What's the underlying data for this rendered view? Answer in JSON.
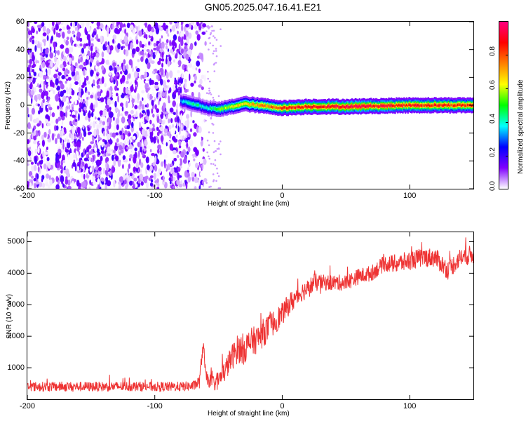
{
  "figure": {
    "title": "GN05.2025.047.16.41.E21"
  },
  "chart_data": [
    {
      "type": "heatmap",
      "title": "",
      "xlabel": "Height of straight line (km)",
      "ylabel": "Frequency (Hz)",
      "xlim": [
        -200,
        150
      ],
      "ylim": [
        -60,
        60
      ],
      "x_ticks": [
        -200,
        -100,
        0,
        100
      ],
      "y_ticks": [
        -60,
        -40,
        -20,
        0,
        20,
        40,
        60
      ],
      "x_tick_labels": [
        "-200",
        "-100",
        "0",
        "100"
      ],
      "y_tick_labels": [
        "-60",
        "-40",
        "-20",
        "0",
        "20",
        "40",
        "60"
      ],
      "noise_region_x": [
        -200,
        -60
      ],
      "signal": {
        "x": [
          -80,
          -70,
          -60,
          -50,
          -40,
          -30,
          -20,
          -10,
          0,
          20,
          50,
          100,
          150
        ],
        "frequency": [
          3,
          1,
          -2,
          -3,
          -1,
          1,
          0,
          -1,
          -2,
          -1,
          -1,
          0,
          0
        ],
        "peak_amplitude": [
          0.35,
          0.45,
          0.4,
          0.55,
          0.65,
          0.7,
          0.75,
          0.8,
          0.85,
          0.9,
          0.95,
          0.9,
          0.85
        ]
      },
      "colorbar": {
        "label": "Normalized spectral amplitude",
        "range": [
          0.0,
          1.0
        ],
        "ticks": [
          0.0,
          0.2,
          0.4,
          0.6,
          0.8
        ],
        "tick_labels": [
          "0.0",
          "0.2",
          "0.4",
          "0.6",
          "0.8"
        ],
        "colors": [
          "#ffffff",
          "#8000ff",
          "#0000ff",
          "#00ffff",
          "#00ff00",
          "#ffff00",
          "#ff8000",
          "#ff0000",
          "#ff0080"
        ]
      }
    },
    {
      "type": "line",
      "title": "",
      "xlabel": "Height of straight line (km)",
      "ylabel": "SNR (10 * v/v)",
      "xlim": [
        -200,
        150
      ],
      "ylim": [
        0,
        5300
      ],
      "x_ticks": [
        -200,
        -100,
        0,
        100
      ],
      "y_ticks": [
        1000,
        2000,
        3000,
        4000,
        5000
      ],
      "x_tick_labels": [
        "-200",
        "-100",
        "0",
        "100"
      ],
      "y_tick_labels": [
        "1000",
        "2000",
        "3000",
        "4000",
        "5000"
      ],
      "series": [
        {
          "color": "#ee3333",
          "x": [
            -200,
            -180,
            -160,
            -140,
            -120,
            -100,
            -80,
            -70,
            -65,
            -62,
            -60,
            -55,
            -50,
            -45,
            -40,
            -35,
            -30,
            -25,
            -20,
            -15,
            -10,
            -5,
            0,
            5,
            10,
            15,
            20,
            25,
            30,
            40,
            50,
            60,
            70,
            80,
            90,
            100,
            110,
            120,
            130,
            140,
            150
          ],
          "y": [
            400,
            400,
            400,
            400,
            410,
            400,
            400,
            420,
            550,
            1800,
            700,
            500,
            600,
            900,
            1300,
            1600,
            1600,
            1800,
            1900,
            2100,
            2300,
            2500,
            2700,
            3000,
            3200,
            3400,
            3500,
            3700,
            3700,
            3700,
            3700,
            3900,
            4000,
            4300,
            4300,
            4400,
            4500,
            4500,
            4100,
            4500,
            4600
          ],
          "spread": [
            300,
            300,
            300,
            300,
            300,
            300,
            300,
            300,
            400,
            500,
            400,
            500,
            600,
            700,
            800,
            900,
            1000,
            900,
            900,
            900,
            800,
            800,
            700,
            700,
            700,
            600,
            600,
            600,
            500,
            500,
            500,
            500,
            500,
            500,
            600,
            600,
            600,
            600,
            600,
            600,
            600
          ]
        }
      ]
    }
  ]
}
